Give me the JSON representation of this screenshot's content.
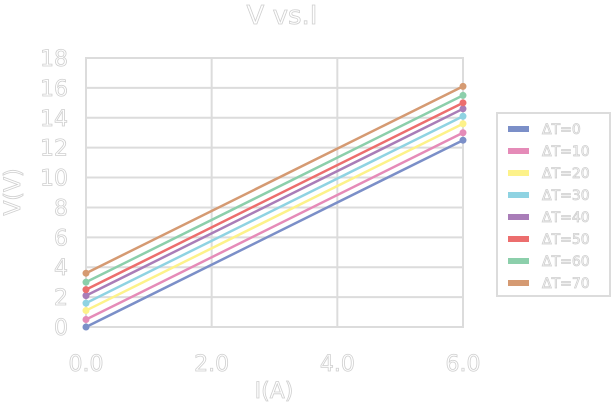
{
  "chart_data": {
    "type": "line",
    "title": "V vs.I",
    "xlabel": "I(A)",
    "ylabel": "V(V)",
    "xlim": [
      0,
      6
    ],
    "ylim": [
      0,
      18
    ],
    "xticks": [
      "0.0",
      "2.0",
      "4.0",
      "6.0"
    ],
    "yticks": [
      "0",
      "2",
      "4",
      "6",
      "8",
      "10",
      "12",
      "14",
      "16",
      "18"
    ],
    "grid": true,
    "legend_position": "right",
    "x": [
      0,
      6
    ],
    "series": [
      {
        "name": "ΔT=0",
        "color": "#7b8fc8",
        "values": [
          0.0,
          12.5
        ]
      },
      {
        "name": "ΔT=10",
        "color": "#e58bb8",
        "values": [
          0.5,
          13.0
        ]
      },
      {
        "name": "ΔT=20",
        "color": "#fdf28a",
        "values": [
          1.1,
          13.6
        ]
      },
      {
        "name": "ΔT=30",
        "color": "#8fd3e2",
        "values": [
          1.6,
          14.1
        ]
      },
      {
        "name": "ΔT=40",
        "color": "#a97db8",
        "values": [
          2.1,
          14.6
        ]
      },
      {
        "name": "ΔT=50",
        "color": "#ec6e6e",
        "values": [
          2.5,
          15.0
        ]
      },
      {
        "name": "ΔT=60",
        "color": "#8ccfab",
        "values": [
          3.0,
          15.5
        ]
      },
      {
        "name": "ΔT=70",
        "color": "#d59a72",
        "values": [
          3.6,
          16.1
        ]
      }
    ]
  }
}
